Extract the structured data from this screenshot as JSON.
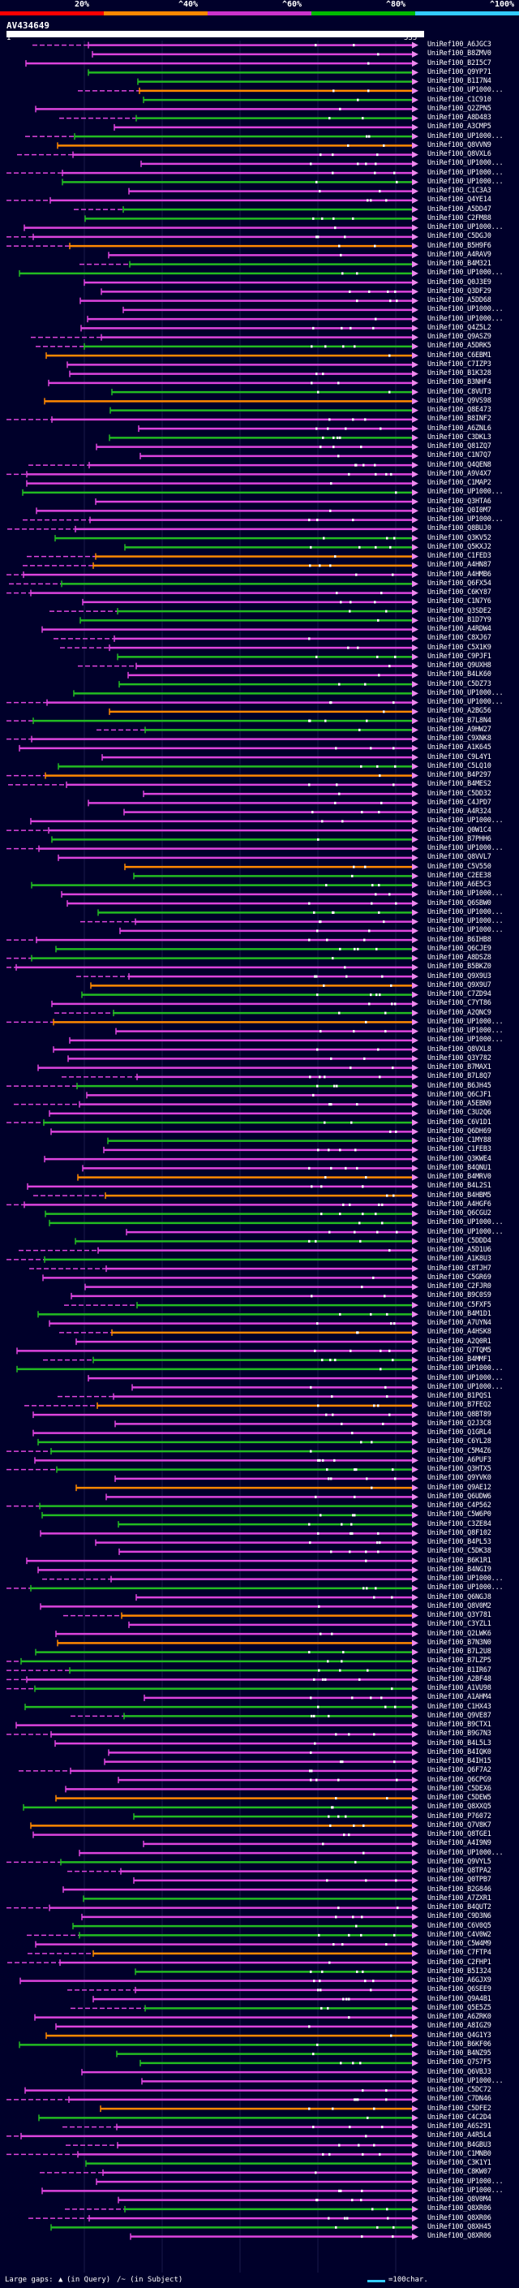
{
  "query_id": "AV434649",
  "query_start": "1",
  "query_end": "535",
  "score_scale": {
    "labels": [
      "20%",
      "^40%",
      "^60%",
      "^80%",
      "^100%"
    ],
    "colors": [
      "#ff0000",
      "#ff8800",
      "#cc33cc",
      "#00bb00",
      "#33ccff"
    ]
  },
  "hit_colors": {
    "magenta": "#dd44dd",
    "green": "#22bb22",
    "orange": "#ff8800",
    "marker": "#ffffff"
  },
  "legend": {
    "large_gaps": "Large gaps:",
    "in_query": "(in Query)",
    "in_subject": "/~ (in Subject)",
    "scale_text": "=100char."
  },
  "hits": [
    "UniRef100_A6JGC3",
    "UniRef100_B8ZMV0",
    "UniRef100_B2I5C7",
    "UniRef100_Q9YP71",
    "UniRef100_B1I7N4",
    "UniRef100_UP1000...",
    "UniRef100_C1C910",
    "UniRef100_Q2ZPN5",
    "UniRef100_A8D483",
    "UniRef100_A3CMP5",
    "UniRef100_UP1000...",
    "UniRef100_Q8VVN9",
    "UniRef100_Q8VXL6",
    "UniRef100_UP1000...",
    "UniRef100_UP1000...",
    "UniRef100_UP1000...",
    "UniRef100_C1C3A3",
    "UniRef100_Q4YE14",
    "UniRef100_A5DD47",
    "UniRef100_C2FM88",
    "UniRef100_UP1000...",
    "UniRef100_C5DGJ0",
    "UniRef100_B5H9F6",
    "UniRef100_A4RAV9",
    "UniRef100_B4M321",
    "UniRef100_UP1000...",
    "UniRef100_Q0J3E9",
    "UniRef100_Q3DF29",
    "UniRef100_A5DD68",
    "UniRef100_UP1000...",
    "UniRef100_UP1000...",
    "UniRef100_Q4Z5L2",
    "UniRef100_Q9ASZ9",
    "UniRef100_A5DRK5",
    "UniRef100_C6EBM1",
    "UniRef100_C7IZP3",
    "UniRef100_B1K328",
    "UniRef100_B3NHF4",
    "UniRef100_C8VUT3",
    "UniRef100_Q9VS98",
    "UniRef100_Q8E473",
    "UniRef100_B8INF2",
    "UniRef100_A6ZNL6",
    "UniRef100_C3DKL3",
    "UniRef100_Q81ZQ7",
    "UniRef100_C1N7Q7",
    "UniRef100_Q4QEN8",
    "UniRef100_A9V4X7",
    "UniRef100_C1MAP2",
    "UniRef100_UP1000...",
    "UniRef100_Q3HTA6",
    "UniRef100_Q0I0M7",
    "UniRef100_UP1000...",
    "UniRef100_Q8BUJ0",
    "UniRef100_Q3KV52",
    "UniRef100_Q5KXJ2",
    "UniRef100_C1FED3",
    "UniRef100_A4HN87",
    "UniRef100_A4HMB6",
    "UniRef100_Q6FX54",
    "UniRef100_C6KY87",
    "UniRef100_C1N7Y6",
    "UniRef100_Q3SDE2",
    "UniRef100_B1D7Y9",
    "UniRef100_A4RDW4",
    "UniRef100_C8XJ67",
    "UniRef100_C5X1K9",
    "UniRef100_C9PJF1",
    "UniRef100_Q9UXH8",
    "UniRef100_B4LK60",
    "UniRef100_C5DZ73",
    "UniRef100_UP1000...",
    "UniRef100_UP1000...",
    "UniRef100_A2BG56",
    "UniRef100_B7L8N4",
    "UniRef100_A9HW27",
    "UniRef100_C9XNK8",
    "UniRef100_A1K645",
    "UniRef100_C9L4Y1",
    "UniRef100_C5LQ10",
    "UniRef100_B4P297",
    "UniRef100_B4MES2",
    "UniRef100_C5DD32",
    "UniRef100_C4JPD7",
    "UniRef100_A4R324",
    "UniRef100_UP1000...",
    "UniRef100_Q0W1C4",
    "UniRef100_B7PHH6",
    "UniRef100_UP1000...",
    "UniRef100_Q8VVL7",
    "UniRef100_C5V550",
    "UniRef100_C2EE38",
    "UniRef100_A6E5C3",
    "UniRef100_UP1000...",
    "UniRef100_Q6SBW0",
    "UniRef100_UP1000...",
    "UniRef100_UP1000...",
    "UniRef100_UP1000...",
    "UniRef100_B6IHB8",
    "UniRef100_Q6CJE9",
    "UniRef100_A8DSZ8",
    "UniRef100_B5BKZ0",
    "UniRef100_Q9X9U3",
    "UniRef100_Q9X9U7",
    "UniRef100_C7ZD94",
    "UniRef100_C7YT86",
    "UniRef100_A2QNC9",
    "UniRef100_UP1000...",
    "UniRef100_UP1000...",
    "UniRef100_UP1000...",
    "UniRef100_Q8VXL8",
    "UniRef100_Q3Y782",
    "UniRef100_B7MAX1",
    "UniRef100_B7L8Q7",
    "UniRef100_B6JH45",
    "UniRef100_Q6CJF1",
    "UniRef100_A5EBN9",
    "UniRef100_C3U2Q6",
    "UniRef100_C6V1D1",
    "UniRef100_Q6DH69",
    "UniRef100_C1MY88",
    "UniRef100_C1FEB3",
    "UniRef100_Q3KWE4",
    "UniRef100_B4QNU1",
    "UniRef100_B4MRV0",
    "UniRef100_B4L2S1",
    "UniRef100_B4HBM5",
    "UniRef100_A4HGF6",
    "UniRef100_Q6CGU2",
    "UniRef100_UP1000...",
    "UniRef100_UP1000...",
    "UniRef100_C5DDD4",
    "UniRef100_A5D1U6",
    "UniRef100_A1K8U3",
    "UniRef100_C8TJH7",
    "UniRef100_C5GR69",
    "UniRef100_C2FJR0",
    "UniRef100_B9C0S9",
    "UniRef100_C5FXF5",
    "UniRef100_B4M1D1",
    "UniRef100_A7UYN4",
    "UniRef100_A4HSK8",
    "UniRef100_A2Q0R1",
    "UniRef100_Q7TQM5",
    "UniRef100_B4MMF1",
    "UniRef100_UP1000...",
    "UniRef100_UP1000...",
    "UniRef100_UP1000...",
    "UniRef100_B1PQS1",
    "UniRef100_B7FEQ2",
    "UniRef100_Q8BT89",
    "UniRef100_Q2J3C8",
    "UniRef100_Q1GRL4",
    "UniRef100_C6YL28",
    "UniRef100_C5M4Z6",
    "UniRef100_A6PUF3",
    "UniRef100_Q3HTX5",
    "UniRef100_Q9YVK0",
    "UniRef100_Q9AE12",
    "UniRef100_Q6UDW6",
    "UniRef100_C4P562",
    "UniRef100_C5W6P0",
    "UniRef100_C3ZE84",
    "UniRef100_Q8F102",
    "UniRef100_B4PL53",
    "UniRef100_C5DK38",
    "UniRef100_B6K1R1",
    "UniRef100_B4NGI9",
    "UniRef100_UP1000...",
    "UniRef100_UP1000...",
    "UniRef100_Q6NGJ8",
    "UniRef100_Q8V0M2",
    "UniRef100_Q3Y781",
    "UniRef100_C3YZL1",
    "UniRef100_Q2LWK6",
    "UniRef100_B7N3N0",
    "UniRef100_B7L2U8",
    "UniRef100_B7LZP5",
    "UniRef100_B1IR67",
    "UniRef100_A2BF48",
    "UniRef100_A1VU98",
    "UniRef100_A1AHM4",
    "UniRef100_C1HX43",
    "UniRef100_Q9VE87",
    "UniRef100_B9CTX1",
    "UniRef100_B9G7N3",
    "UniRef100_B4L5L3",
    "UniRef100_B4IQK0",
    "UniRef100_B4IH15",
    "UniRef100_Q6F7A2",
    "UniRef100_Q6CPG9",
    "UniRef100_C5DEX6",
    "UniRef100_C5DEW5",
    "UniRef100_Q8XXQ5",
    "UniRef100_P76072",
    "UniRef100_Q7V8K7",
    "UniRef100_Q8TGE1",
    "UniRef100_A4I9N9",
    "UniRef100_UP1000...",
    "UniRef100_Q9VYL5",
    "UniRef100_Q8TPA2",
    "UniRef100_Q0TPB7",
    "UniRef100_B2G846",
    "UniRef100_A7ZXR1",
    "UniRef100_B4QUT2",
    "UniRef100_C9D3N6",
    "UniRef100_C6V0Q5",
    "UniRef100_C4V0W2",
    "UniRef100_C5W4M9",
    "UniRef100_C7FTP4",
    "UniRef100_C2FHP1",
    "UniRef100_B5I324",
    "UniRef100_A6GJX9",
    "UniRef100_Q6SEE9",
    "UniRef100_Q9A4B1",
    "UniRef100_Q5E5Z5",
    "UniRef100_A6ZRK0",
    "UniRef100_A8IGZ9",
    "UniRef100_Q4G1Y3",
    "UniRef100_B6KF06",
    "UniRef100_B4NZ95",
    "UniRef100_Q7S7F5",
    "UniRef100_Q6VBJ3",
    "UniRef100_UP1000...",
    "UniRef100_C5DC72",
    "UniRef100_C7DN46",
    "UniRef100_C5DFE2",
    "UniRef100_C4C2D4",
    "UniRef100_A6S291",
    "UniRef100_A4R5L4",
    "UniRef100_B4GBU3",
    "UniRef100_C1MNB0",
    "UniRef100_C3K1Y1",
    "UniRef100_C8KW07",
    "UniRef100_UP1000...",
    "UniRef100_UP1000...",
    "UniRef100_Q8V0M4",
    "UniRef100_Q8XR06",
    "UniRef100_Q8XR06",
    "UniRef100_Q8XH45",
    "UniRef100_Q8XR06"
  ]
}
